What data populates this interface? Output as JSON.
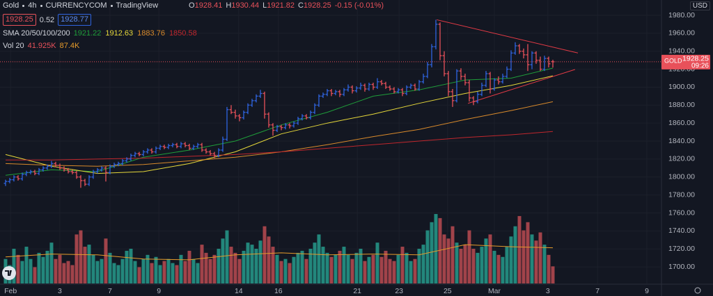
{
  "chart_data": {
    "type": "ohlc",
    "title": "Gold",
    "interval": "4h",
    "source": "CURRENCYCOM",
    "brand": "TradingView",
    "legend_ohlc": [
      {
        "label": "O",
        "value": "1928.41"
      },
      {
        "label": "H",
        "value": "1930.44"
      },
      {
        "label": "L",
        "value": "1921.82"
      },
      {
        "label": "C",
        "value": "1928.25"
      }
    ],
    "change": "-0.15 (-0.01%)",
    "bid": "1928.25",
    "spread": "0.52",
    "ask": "1928.77",
    "currency": "USD",
    "symbol_tag": "GOLD",
    "last_price_label": "1928.25",
    "countdown": "09:26",
    "up_color": "#2f64e0",
    "down_color": "#e8515a",
    "vol_up_color": "#23877c",
    "vol_down_color": "#a1434a",
    "xlim": [
      -1.33,
      157
    ],
    "ylim": [
      1681.5,
      1997
    ],
    "vol_ylim": [
      0,
      170
    ],
    "yticks": [
      {
        "value": 1700,
        "label": "1700.00"
      },
      {
        "value": 1720,
        "label": "1720.00"
      },
      {
        "value": 1740,
        "label": "1740.00"
      },
      {
        "value": 1760,
        "label": "1760.00"
      },
      {
        "value": 1780,
        "label": "1780.00"
      },
      {
        "value": 1800,
        "label": "1800.00"
      },
      {
        "value": 1820,
        "label": "1820.00"
      },
      {
        "value": 1840,
        "label": "1840.00"
      },
      {
        "value": 1860,
        "label": "1860.00"
      },
      {
        "value": 1880,
        "label": "1880.00"
      },
      {
        "value": 1900,
        "label": "1900.00"
      },
      {
        "value": 1920,
        "label": "1920.00"
      },
      {
        "value": 1940,
        "label": "1940.00"
      },
      {
        "value": 1960,
        "label": "1960.00"
      },
      {
        "value": 1980,
        "label": "1980.00"
      }
    ],
    "xticks": [
      {
        "value": 1.2,
        "label": "Feb"
      },
      {
        "value": 13,
        "label": "3"
      },
      {
        "value": 25,
        "label": "7"
      },
      {
        "value": 36.7,
        "label": "9"
      },
      {
        "value": 55.8,
        "label": "14"
      },
      {
        "value": 65.3,
        "label": "16"
      },
      {
        "value": 84.2,
        "label": "21"
      },
      {
        "value": 94.2,
        "label": "23"
      },
      {
        "value": 105.8,
        "label": "25"
      },
      {
        "value": 117,
        "label": "Mar"
      },
      {
        "value": 129.8,
        "label": "3"
      },
      {
        "value": 141.7,
        "label": "7"
      },
      {
        "value": 153.5,
        "label": "9"
      }
    ],
    "ohlc": [
      [
        1793,
        1797,
        1790,
        1795
      ],
      [
        1795,
        1799,
        1793,
        1797
      ],
      [
        1797,
        1802,
        1795,
        1800
      ],
      [
        1800,
        1802,
        1796,
        1798
      ],
      [
        1798,
        1805,
        1796,
        1803
      ],
      [
        1803,
        1807,
        1801,
        1805
      ],
      [
        1805,
        1808,
        1803,
        1806
      ],
      [
        1806,
        1808,
        1802,
        1804
      ],
      [
        1804,
        1810,
        1802,
        1808
      ],
      [
        1808,
        1812,
        1806,
        1810
      ],
      [
        1810,
        1814,
        1808,
        1812
      ],
      [
        1812,
        1818,
        1810,
        1815
      ],
      [
        1815,
        1817,
        1811,
        1813
      ],
      [
        1813,
        1815,
        1808,
        1810
      ],
      [
        1810,
        1812,
        1806,
        1808
      ],
      [
        1808,
        1810,
        1804,
        1806
      ],
      [
        1806,
        1808,
        1803,
        1805
      ],
      [
        1805,
        1807,
        1798,
        1800
      ],
      [
        1800,
        1802,
        1788,
        1796
      ],
      [
        1796,
        1798,
        1790,
        1792
      ],
      [
        1792,
        1802,
        1790,
        1800
      ],
      [
        1800,
        1808,
        1798,
        1806
      ],
      [
        1806,
        1810,
        1804,
        1808
      ],
      [
        1808,
        1812,
        1806,
        1810
      ],
      [
        1810,
        1812,
        1795,
        1805
      ],
      [
        1805,
        1814,
        1803,
        1812
      ],
      [
        1812,
        1816,
        1810,
        1814
      ],
      [
        1814,
        1817,
        1812,
        1815
      ],
      [
        1815,
        1820,
        1813,
        1818
      ],
      [
        1818,
        1822,
        1816,
        1820
      ],
      [
        1820,
        1826,
        1818,
        1824
      ],
      [
        1824,
        1828,
        1822,
        1826
      ],
      [
        1826,
        1828,
        1823,
        1825
      ],
      [
        1825,
        1830,
        1823,
        1828
      ],
      [
        1828,
        1832,
        1826,
        1830
      ],
      [
        1830,
        1832,
        1826,
        1828
      ],
      [
        1828,
        1834,
        1826,
        1832
      ],
      [
        1832,
        1836,
        1830,
        1834
      ],
      [
        1834,
        1836,
        1831,
        1833
      ],
      [
        1833,
        1837,
        1831,
        1835
      ],
      [
        1835,
        1838,
        1833,
        1836
      ],
      [
        1836,
        1838,
        1832,
        1834
      ],
      [
        1834,
        1839,
        1832,
        1837
      ],
      [
        1837,
        1839,
        1833,
        1835
      ],
      [
        1835,
        1837,
        1830,
        1832
      ],
      [
        1832,
        1836,
        1830,
        1834
      ],
      [
        1834,
        1838,
        1832,
        1836
      ],
      [
        1836,
        1838,
        1828,
        1830
      ],
      [
        1830,
        1832,
        1826,
        1828
      ],
      [
        1828,
        1830,
        1824,
        1826
      ],
      [
        1826,
        1828,
        1821,
        1824
      ],
      [
        1824,
        1832,
        1822,
        1830
      ],
      [
        1830,
        1845,
        1828,
        1842
      ],
      [
        1842,
        1878,
        1840,
        1875
      ],
      [
        1875,
        1880,
        1870,
        1872
      ],
      [
        1872,
        1875,
        1865,
        1868
      ],
      [
        1868,
        1870,
        1862,
        1866
      ],
      [
        1866,
        1874,
        1864,
        1872
      ],
      [
        1872,
        1882,
        1870,
        1880
      ],
      [
        1880,
        1887,
        1878,
        1885
      ],
      [
        1885,
        1892,
        1883,
        1890
      ],
      [
        1890,
        1897,
        1888,
        1893
      ],
      [
        1893,
        1895,
        1865,
        1870
      ],
      [
        1870,
        1872,
        1855,
        1858
      ],
      [
        1858,
        1860,
        1846,
        1852
      ],
      [
        1852,
        1858,
        1850,
        1856
      ],
      [
        1856,
        1858,
        1852,
        1855
      ],
      [
        1855,
        1860,
        1853,
        1858
      ],
      [
        1858,
        1860,
        1854,
        1857
      ],
      [
        1857,
        1862,
        1855,
        1860
      ],
      [
        1860,
        1867,
        1858,
        1865
      ],
      [
        1865,
        1870,
        1863,
        1868
      ],
      [
        1868,
        1870,
        1864,
        1866
      ],
      [
        1866,
        1874,
        1864,
        1872
      ],
      [
        1872,
        1882,
        1870,
        1880
      ],
      [
        1880,
        1892,
        1878,
        1890
      ],
      [
        1890,
        1894,
        1888,
        1892
      ],
      [
        1892,
        1898,
        1890,
        1896
      ],
      [
        1896,
        1898,
        1890,
        1893
      ],
      [
        1893,
        1897,
        1891,
        1895
      ],
      [
        1895,
        1897,
        1889,
        1892
      ],
      [
        1892,
        1899,
        1890,
        1897
      ],
      [
        1897,
        1903,
        1895,
        1900
      ],
      [
        1900,
        1902,
        1893,
        1896
      ],
      [
        1896,
        1901,
        1894,
        1899
      ],
      [
        1899,
        1905,
        1897,
        1902
      ],
      [
        1902,
        1904,
        1895,
        1898
      ],
      [
        1898,
        1905,
        1896,
        1903
      ],
      [
        1903,
        1905,
        1897,
        1900
      ],
      [
        1900,
        1910,
        1898,
        1906
      ],
      [
        1906,
        1908,
        1902,
        1904
      ],
      [
        1904,
        1906,
        1898,
        1900
      ],
      [
        1900,
        1902,
        1896,
        1898
      ],
      [
        1898,
        1900,
        1893,
        1895
      ],
      [
        1895,
        1899,
        1893,
        1897
      ],
      [
        1897,
        1899,
        1890,
        1893
      ],
      [
        1893,
        1902,
        1891,
        1900
      ],
      [
        1900,
        1904,
        1898,
        1902
      ],
      [
        1902,
        1904,
        1896,
        1898
      ],
      [
        1898,
        1908,
        1896,
        1906
      ],
      [
        1906,
        1915,
        1904,
        1912
      ],
      [
        1912,
        1928,
        1910,
        1925
      ],
      [
        1925,
        1948,
        1922,
        1945
      ],
      [
        1945,
        1975,
        1942,
        1970
      ],
      [
        1970,
        1972,
        1930,
        1935
      ],
      [
        1935,
        1940,
        1912,
        1915
      ],
      [
        1915,
        1918,
        1890,
        1895
      ],
      [
        1895,
        1898,
        1878,
        1885
      ],
      [
        1885,
        1920,
        1883,
        1918
      ],
      [
        1918,
        1921,
        1908,
        1912
      ],
      [
        1912,
        1915,
        1902,
        1905
      ],
      [
        1905,
        1908,
        1884,
        1888
      ],
      [
        1888,
        1890,
        1880,
        1884
      ],
      [
        1884,
        1895,
        1882,
        1892
      ],
      [
        1892,
        1905,
        1890,
        1902
      ],
      [
        1902,
        1918,
        1900,
        1915
      ],
      [
        1915,
        1917,
        1893,
        1898
      ],
      [
        1898,
        1910,
        1896,
        1908
      ],
      [
        1908,
        1912,
        1903,
        1906
      ],
      [
        1906,
        1915,
        1904,
        1912
      ],
      [
        1912,
        1923,
        1910,
        1920
      ],
      [
        1920,
        1941,
        1918,
        1938
      ],
      [
        1938,
        1950,
        1936,
        1946
      ],
      [
        1946,
        1948,
        1937,
        1940
      ],
      [
        1940,
        1943,
        1932,
        1936
      ],
      [
        1936,
        1948,
        1918,
        1925
      ],
      [
        1925,
        1940,
        1920,
        1938
      ],
      [
        1938,
        1940,
        1926,
        1930
      ],
      [
        1930,
        1934,
        1918,
        1920
      ],
      [
        1920,
        1935,
        1918,
        1932
      ],
      [
        1932,
        1934,
        1922,
        1926
      ],
      [
        1928.41,
        1930.44,
        1921.82,
        1928.25
      ]
    ],
    "volume": {
      "values": [
        60,
        45,
        85,
        70,
        55,
        90,
        60,
        40,
        75,
        65,
        80,
        100,
        60,
        70,
        50,
        55,
        45,
        120,
        130,
        90,
        95,
        70,
        55,
        60,
        110,
        75,
        50,
        45,
        60,
        80,
        85,
        55,
        40,
        60,
        70,
        50,
        65,
        45,
        55,
        60,
        50,
        45,
        70,
        55,
        80,
        60,
        50,
        95,
        75,
        60,
        70,
        85,
        110,
        130,
        90,
        75,
        60,
        80,
        100,
        95,
        85,
        105,
        140,
        115,
        90,
        70,
        55,
        60,
        50,
        65,
        75,
        80,
        60,
        85,
        100,
        120,
        90,
        75,
        65,
        70,
        80,
        90,
        70,
        60,
        75,
        85,
        55,
        65,
        70,
        100,
        65,
        80,
        60,
        55,
        70,
        90,
        75,
        55,
        60,
        85,
        95,
        130,
        150,
        170,
        160,
        120,
        110,
        140,
        100,
        85,
        95,
        130,
        85,
        75,
        90,
        110,
        120,
        80,
        70,
        65,
        90,
        115,
        140,
        165,
        130,
        150,
        120,
        105,
        125,
        95,
        70,
        41.925
      ],
      "last_label": "41.925K"
    },
    "sma_x": [
      0,
      11,
      22,
      33,
      44,
      55,
      66,
      77,
      88,
      99,
      110,
      121,
      131
    ],
    "sma_label": "SMA 20/50/100/200",
    "sma": [
      {
        "color": "#1f9e3a",
        "values": [
          1802,
          1808,
          1806,
          1822,
          1830,
          1840,
          1858,
          1872,
          1890,
          1897,
          1908,
          1910,
          1921.22
        ]
      },
      {
        "color": "#e6d83a",
        "values": [
          1825,
          1812,
          1804,
          1806,
          1815,
          1828,
          1848,
          1860,
          1870,
          1882,
          1893,
          1902,
          1912.63
        ]
      },
      {
        "color": "#d98a2b",
        "values": [
          1815,
          1813,
          1812,
          1814,
          1818,
          1822,
          1828,
          1836,
          1845,
          1853,
          1864,
          1874,
          1883.76
        ]
      },
      {
        "color": "#c1272d",
        "values": [
          1819,
          1819,
          1820,
          1821,
          1823,
          1825,
          1828,
          1832,
          1836,
          1840,
          1844,
          1847,
          1850.58
        ]
      }
    ],
    "vol_label": "Vol 20",
    "vol_ma": {
      "color": "#e69b2a",
      "values": [
        65,
        72,
        70,
        60,
        58,
        70,
        75,
        70,
        72,
        70,
        95,
        90,
        87.4
      ],
      "value_label": "87.4K"
    },
    "trendlines": [
      {
        "color": "#e23a45",
        "x": [
          103.2,
          137
        ],
        "y": [
          1975,
          1938
        ]
      },
      {
        "color": "#e23a45",
        "x": [
          110.7,
          136.3
        ],
        "y": [
          1882,
          1919.7
        ]
      }
    ]
  }
}
